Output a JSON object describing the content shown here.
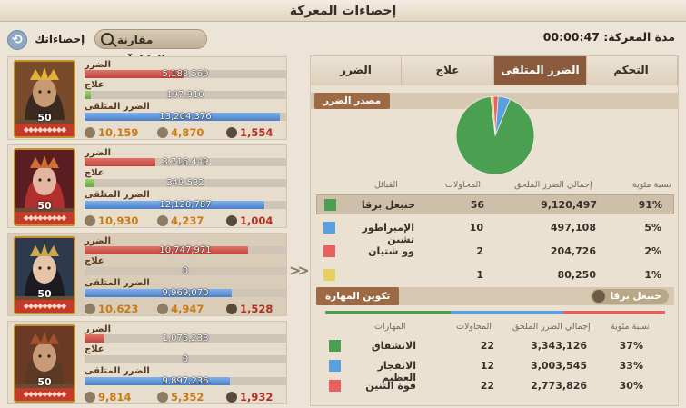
{
  "title": "إحصاءات المعركة",
  "duration_text": "مدة المعركة: 00:00:47",
  "compare_button": "مقارنة المكافآت",
  "my_stats_button": "إحصاءاتك",
  "commander_labels": {
    "damage": "الضرر",
    "heal": "علاج",
    "taken": "الضرر المتلقى"
  },
  "commanders": [
    {
      "level": "50",
      "damage": "5,188,560",
      "damage_frac": 0.49,
      "heal": "197,910",
      "heal_frac": 0.03,
      "taken": "13,204,376",
      "taken_frac": 0.97,
      "sl": "10,159",
      "sev": "4,870",
      "kills": "1,554",
      "colors": {
        "bg": "#7a4b2a",
        "skin": "#c79a74",
        "hair": "#3a2a20",
        "crown": "#e2b23a"
      }
    },
    {
      "level": "50",
      "damage": "3,716,449",
      "damage_frac": 0.35,
      "heal": "349,532",
      "heal_frac": 0.05,
      "taken": "12,120,787",
      "taken_frac": 0.89,
      "sl": "10,930",
      "sev": "4,237",
      "kills": "1,004",
      "colors": {
        "bg": "#5a1e22",
        "skin": "#e2b5a0",
        "hair": "#b02f2f",
        "crown": "#d07030"
      }
    },
    {
      "level": "50",
      "damage": "10,747,971",
      "damage_frac": 0.81,
      "heal": "0",
      "heal_frac": 0.0,
      "taken": "9,969,070",
      "taken_frac": 0.73,
      "sl": "10,623",
      "sev": "4,947",
      "kills": "1,528",
      "colors": {
        "bg": "#2c3a4c",
        "skin": "#e6c4a8",
        "hair": "#1e1a22",
        "crown": "#c9a84a"
      }
    },
    {
      "level": "50",
      "damage": "1,076,238",
      "damage_frac": 0.1,
      "heal": "0",
      "heal_frac": 0.0,
      "taken": "9,897,236",
      "taken_frac": 0.72,
      "sl": "9,814",
      "sev": "5,352",
      "kills": "1,932",
      "colors": {
        "bg": "#6b3a24",
        "skin": "#c89a78",
        "hair": "#5a3a24",
        "crown": "#a0522d"
      }
    }
  ],
  "tabs": [
    {
      "label": "التحكم"
    },
    {
      "label": "الضرر المتلقى",
      "active": true
    },
    {
      "label": "علاج"
    },
    {
      "label": "الضرر"
    }
  ],
  "source_section": "مصدر الضرر",
  "source_table": {
    "headers": {
      "pct": "نسبة مئوية",
      "total": "إجمالي الضرر الملحق",
      "attempts": "المحاولات",
      "name": "القبائل"
    },
    "rows": [
      {
        "pct": "91%",
        "total": "9,120,497",
        "attempts": "56",
        "name": "حنبعل برقا",
        "color": "#4aa050",
        "selected": true
      },
      {
        "pct": "5%",
        "total": "497,108",
        "attempts": "10",
        "name": "الإمبراطور تشين",
        "color": "#5aa0e0"
      },
      {
        "pct": "2%",
        "total": "204,726",
        "attempts": "2",
        "name": "وو شتيان",
        "color": "#e86060"
      },
      {
        "pct": "1%",
        "total": "80,250",
        "attempts": "1",
        "name": "",
        "color": "#e8d060"
      }
    ]
  },
  "chart_data": {
    "type": "pie",
    "categories": [
      "حنبعل برقا",
      "الإمبراطور تشين",
      "وو شتيان",
      ""
    ],
    "values": [
      91,
      5,
      2,
      1
    ],
    "colors": [
      "#4aa050",
      "#5aa0e0",
      "#e86060",
      "#e8d060"
    ]
  },
  "skill_section": "تكوين المهارة",
  "skill_commander": "حنبعل برقا",
  "skill_table": {
    "headers": {
      "pct": "نسبة مئوية",
      "total": "إجمالي الضرر الملحق",
      "attempts": "المحاولات",
      "name": "المهارات"
    },
    "rows": [
      {
        "pct": "37%",
        "total": "3,343,126",
        "attempts": "22",
        "name": "الانشقاق",
        "color": "#4aa050"
      },
      {
        "pct": "33%",
        "total": "3,003,545",
        "attempts": "12",
        "name": "الانفجار العظيم",
        "color": "#5aa0e0"
      },
      {
        "pct": "30%",
        "total": "2,773,826",
        "attempts": "22",
        "name": "قوة التنين",
        "color": "#e86060"
      }
    ]
  },
  "skill_bar_fracs": [
    0.37,
    0.33,
    0.3
  ]
}
